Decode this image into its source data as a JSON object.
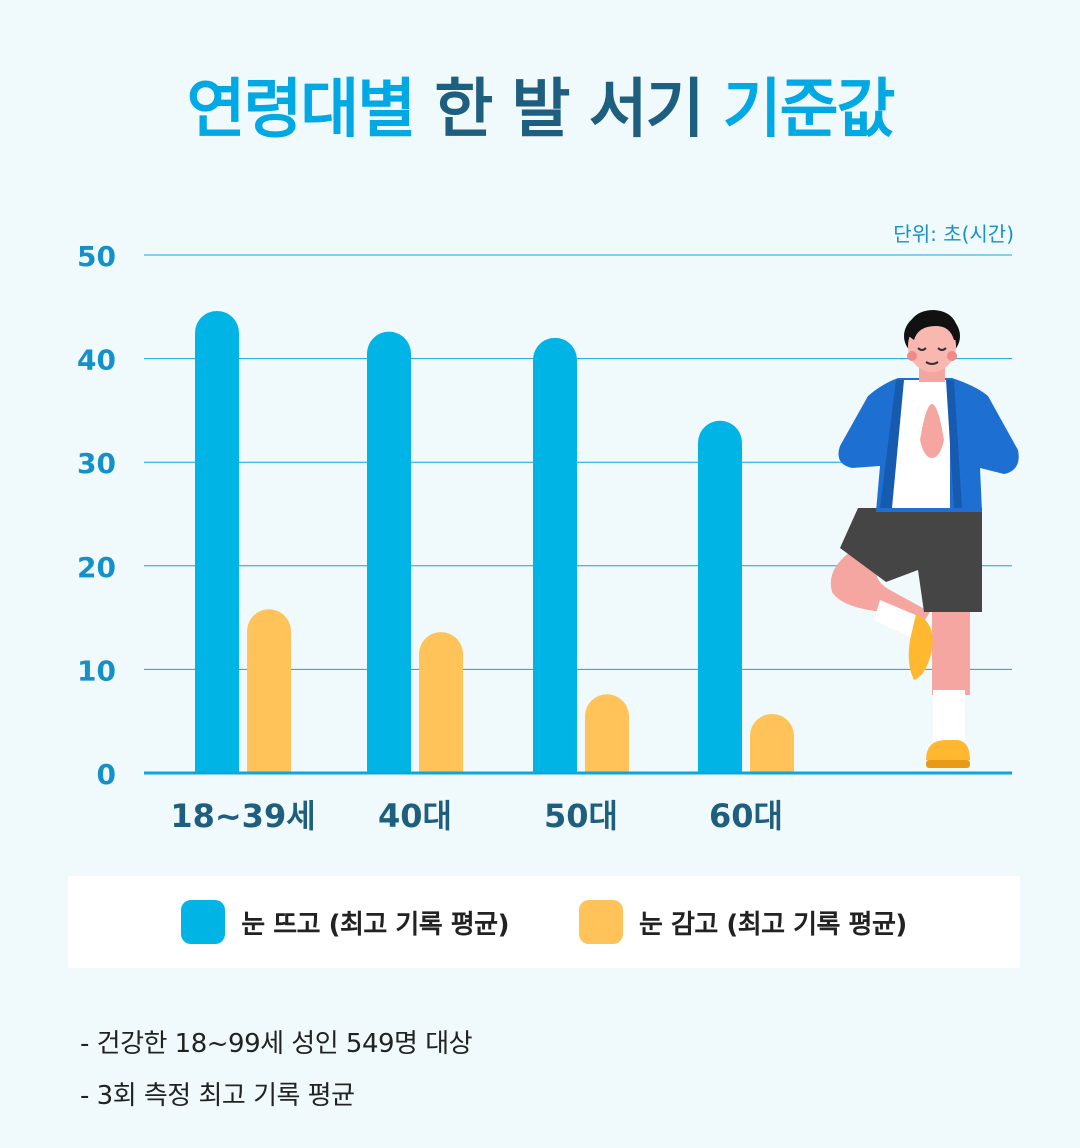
{
  "title": {
    "part1": "연령대별",
    "part2": " 한 발 서기 ",
    "part3": "기준값"
  },
  "unit_label": "단위: 초(시간)",
  "chart_data": {
    "type": "bar",
    "title": "연령대별 한 발 서기 기준값",
    "categories": [
      "18~39세",
      "40대",
      "50대",
      "60대"
    ],
    "series": [
      {
        "name": "눈 뜨고 (최고 기록 평균)",
        "values": [
          44.6,
          42.6,
          42.0,
          34.0
        ],
        "color": "#00b4e6"
      },
      {
        "name": "눈 감고 (최고 기록 평균)",
        "values": [
          15.8,
          13.6,
          7.6,
          5.7
        ],
        "color": "#ffc35a"
      }
    ],
    "ylim": [
      0,
      50
    ],
    "yticks": [
      "0",
      "10",
      "20",
      "30",
      "40",
      "50"
    ],
    "grid": true,
    "legend_position": "bottom",
    "xlabel": "",
    "ylabel": ""
  },
  "notes": [
    "- 건강한 18~99세 성인 549명 대상",
    "- 3회 측정 최고 기록 평균"
  ],
  "colors": {
    "axis": "#0ba6db",
    "tick_text": "#1591c9",
    "category_text": "#1e5e7e"
  }
}
